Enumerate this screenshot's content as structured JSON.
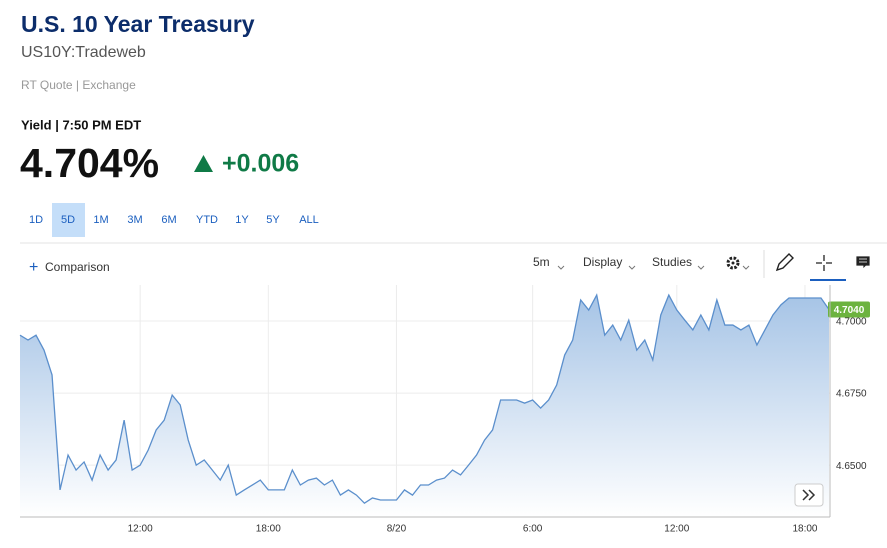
{
  "header": {
    "title": "U.S. 10 Year Treasury",
    "symbol": "US10Y:Tradeweb",
    "quote_source": "RT Quote | Exchange",
    "yield_label": "Yield | 7:50 PM EDT",
    "price": "4.704%",
    "change": "+0.006"
  },
  "ranges": [
    "1D",
    "5D",
    "1M",
    "3M",
    "6M",
    "YTD",
    "1Y",
    "5Y",
    "ALL"
  ],
  "toolbar": {
    "comparison": "Comparison",
    "interval": "5m",
    "display": "Display",
    "studies": "Studies"
  },
  "chart_data": {
    "type": "area",
    "color": "#5b8fcc",
    "grid": true,
    "ylim": [
      4.632,
      4.7125
    ],
    "yticks": [
      {
        "value": 4.65,
        "label": "4.6500"
      },
      {
        "value": 4.675,
        "label": "4.6750"
      },
      {
        "value": 4.7,
        "label": "4.7000"
      }
    ],
    "last_price_label": "4.7040",
    "categories": [
      null,
      null,
      null,
      null,
      null,
      null,
      null,
      null,
      null,
      null,
      null,
      null,
      null,
      null,
      null,
      "12:00",
      null,
      null,
      null,
      null,
      null,
      null,
      null,
      null,
      null,
      null,
      null,
      null,
      null,
      null,
      null,
      "18:00",
      null,
      null,
      null,
      null,
      null,
      null,
      null,
      null,
      null,
      null,
      null,
      null,
      null,
      null,
      null,
      "8/20",
      null,
      null,
      null,
      null,
      null,
      null,
      null,
      null,
      null,
      null,
      null,
      null,
      null,
      null,
      null,
      null,
      "6:00",
      null,
      null,
      null,
      null,
      null,
      null,
      null,
      null,
      null,
      null,
      null,
      null,
      null,
      null,
      null,
      null,
      null,
      "12:00",
      null,
      null,
      null,
      null,
      null,
      null,
      null,
      null,
      null,
      null,
      null,
      null,
      null,
      null,
      null,
      "18:00",
      null,
      null,
      null
    ],
    "values": [
      4.6951,
      4.6934,
      4.6951,
      4.6899,
      4.6813,
      4.6414,
      4.6535,
      4.6483,
      4.6511,
      4.6448,
      4.6535,
      4.6483,
      4.6518,
      4.6656,
      4.6483,
      4.65,
      4.6552,
      4.6622,
      4.6656,
      4.6743,
      4.6709,
      4.6587,
      4.65,
      4.6518,
      4.6483,
      4.6448,
      4.65,
      4.6396,
      4.6414,
      4.6431,
      4.6448,
      4.6414,
      4.6414,
      4.6414,
      4.6483,
      4.6431,
      4.6448,
      4.6455,
      4.6431,
      4.6448,
      4.6396,
      4.6414,
      4.6396,
      4.6368,
      4.6386,
      4.6379,
      4.6379,
      4.6379,
      4.6414,
      4.6396,
      4.6431,
      4.6431,
      4.6448,
      4.6455,
      4.6483,
      4.6466,
      4.65,
      4.6535,
      4.6587,
      4.6622,
      4.6726,
      4.6726,
      4.6726,
      4.6715,
      4.6726,
      4.6698,
      4.6726,
      4.6778,
      4.6882,
      4.6934,
      4.7073,
      4.7038,
      4.709,
      4.6951,
      4.6986,
      4.6934,
      4.7003,
      4.6899,
      4.6934,
      4.6865,
      4.7021,
      4.709,
      4.7038,
      4.7003,
      4.6969,
      4.7021,
      4.6969,
      4.7073,
      4.6986,
      4.6986,
      4.6969,
      4.6986,
      4.6917,
      4.6969,
      4.7021,
      4.7056,
      4.708,
      4.708,
      4.708,
      4.708,
      4.708,
      4.704
    ]
  }
}
